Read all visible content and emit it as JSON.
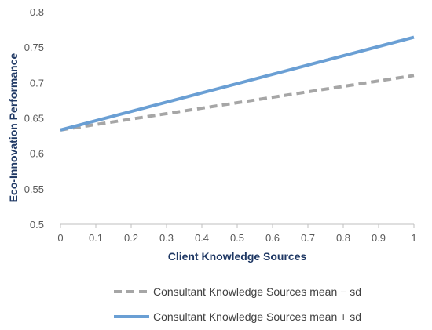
{
  "chart_data": {
    "type": "line",
    "title": "",
    "xlabel": "Client Knowledge Sources",
    "ylabel": "Eco-Innovation Performance",
    "xlim": [
      0,
      1
    ],
    "ylim": [
      0.5,
      0.8
    ],
    "x_ticks": [
      0,
      0.1,
      0.2,
      0.3,
      0.4,
      0.5,
      0.6,
      0.7,
      0.8,
      0.9,
      1
    ],
    "x_tick_labels": [
      "0",
      "0.1",
      "0.2",
      "0.3",
      "0.4",
      "0.5",
      "0.6",
      "0.7",
      "0.8",
      "0.9",
      "1"
    ],
    "y_ticks": [
      0.5,
      0.55,
      0.6,
      0.65,
      0.7,
      0.75,
      0.8
    ],
    "y_tick_labels": [
      "0.5",
      "0.55",
      "0.6",
      "0.65",
      "0.7",
      "0.75",
      "0.8"
    ],
    "grid": false,
    "legend_position": "bottom",
    "series": [
      {
        "name": "Consultant Knowledge Sources mean − sd",
        "color": "#a6a6a6",
        "dash": "dashed",
        "x": [
          0,
          1
        ],
        "y": [
          0.633,
          0.71
        ]
      },
      {
        "name": "Consultant Knowledge Sources mean + sd",
        "color": "#6a9fd4",
        "dash": "solid",
        "x": [
          0,
          1
        ],
        "y": [
          0.633,
          0.764
        ]
      }
    ]
  }
}
